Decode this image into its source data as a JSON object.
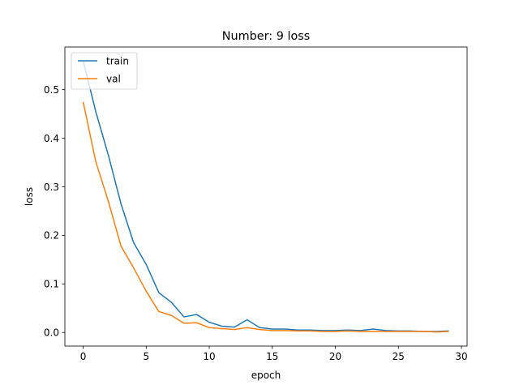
{
  "chart_data": {
    "type": "line",
    "title": "Number: 9 loss",
    "xlabel": "epoch",
    "ylabel": "loss",
    "xlim": [
      -1.45,
      30.45
    ],
    "ylim": [
      -0.028,
      0.588
    ],
    "xticks": [
      0,
      5,
      10,
      15,
      20,
      25,
      30
    ],
    "yticks": [
      0.0,
      0.1,
      0.2,
      0.3,
      0.4,
      0.5
    ],
    "ytick_labels": [
      "0.0",
      "0.1",
      "0.2",
      "0.3",
      "0.4",
      "0.5"
    ],
    "grid": false,
    "legend_position": "upper left",
    "x": [
      0,
      1,
      2,
      3,
      4,
      5,
      6,
      7,
      8,
      9,
      10,
      11,
      12,
      13,
      14,
      15,
      16,
      17,
      18,
      19,
      20,
      21,
      22,
      23,
      24,
      25,
      26,
      27,
      28,
      29
    ],
    "series": [
      {
        "name": "train",
        "color": "#1f77b4",
        "values": [
          0.56,
          0.455,
          0.365,
          0.265,
          0.185,
          0.14,
          0.082,
          0.062,
          0.032,
          0.037,
          0.021,
          0.013,
          0.011,
          0.026,
          0.01,
          0.007,
          0.007,
          0.005,
          0.005,
          0.004,
          0.004,
          0.005,
          0.004,
          0.007,
          0.004,
          0.003,
          0.003,
          0.002,
          0.002,
          0.003
        ]
      },
      {
        "name": "val",
        "color": "#ff7f0e",
        "values": [
          0.475,
          0.352,
          0.27,
          0.178,
          0.133,
          0.085,
          0.043,
          0.035,
          0.019,
          0.02,
          0.01,
          0.008,
          0.006,
          0.01,
          0.006,
          0.004,
          0.004,
          0.003,
          0.003,
          0.002,
          0.002,
          0.003,
          0.002,
          0.002,
          0.002,
          0.002,
          0.002,
          0.002,
          0.001,
          0.002
        ]
      }
    ]
  }
}
